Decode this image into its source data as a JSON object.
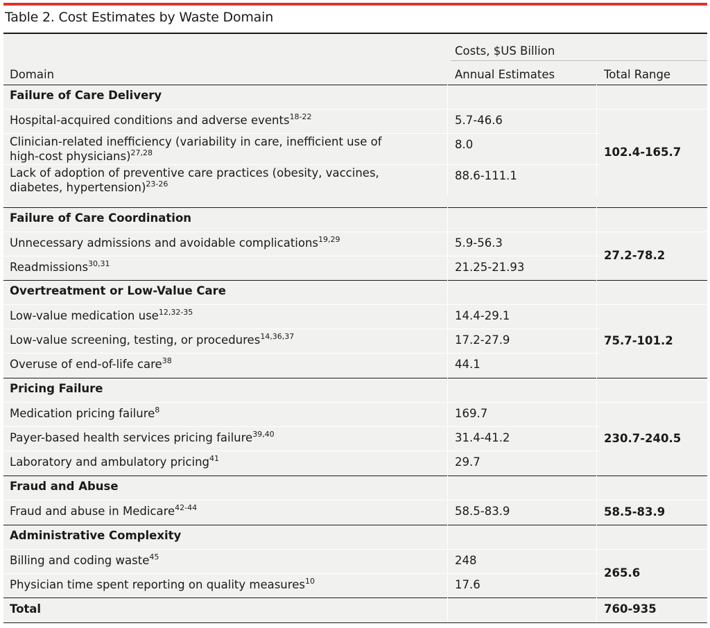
{
  "title": "Table 2. Cost Estimates by Waste Domain",
  "header": {
    "costs": "Costs, $US Billion",
    "domain": "Domain",
    "annual": "Annual Estimates",
    "total_range": "Total Range"
  },
  "sections": [
    {
      "name": "Failure of Care Delivery",
      "total": "102.4-165.7",
      "rows": [
        {
          "label": "Hospital-acquired conditions and adverse events",
          "ref": "18-22",
          "value": "5.7-46.6"
        },
        {
          "label": "Clinician-related inefficiency (variability in care, inefficient use of high-cost physicians)",
          "ref": "27,28",
          "value": "8.0"
        },
        {
          "label": "Lack of adoption of preventive care practices (obesity, vaccines, diabetes, hypertension)",
          "ref": "23-26",
          "value": "88.6-111.1"
        }
      ]
    },
    {
      "name": "Failure of Care Coordination",
      "total": "27.2-78.2",
      "rows": [
        {
          "label": "Unnecessary admissions and avoidable complications",
          "ref": "19,29",
          "value": "5.9-56.3"
        },
        {
          "label": "Readmissions",
          "ref": "30,31",
          "value": "21.25-21.93"
        }
      ]
    },
    {
      "name": "Overtreatment or Low-Value Care",
      "total": "75.7-101.2",
      "rows": [
        {
          "label": "Low-value medication use",
          "ref": "12,32-35",
          "value": "14.4-29.1"
        },
        {
          "label": "Low-value screening, testing, or procedures",
          "ref": "14,36,37",
          "value": "17.2-27.9"
        },
        {
          "label": "Overuse of end-of-life care",
          "ref": "38",
          "value": "44.1"
        }
      ]
    },
    {
      "name": "Pricing Failure",
      "total": "230.7-240.5",
      "rows": [
        {
          "label": "Medication pricing failure",
          "ref": "8",
          "value": "169.7"
        },
        {
          "label": "Payer-based health services pricing failure",
          "ref": "39,40",
          "value": "31.4-41.2"
        },
        {
          "label": "Laboratory and ambulatory pricing",
          "ref": "41",
          "value": "29.7"
        }
      ]
    },
    {
      "name": "Fraud and Abuse",
      "total": "58.5-83.9",
      "rows": [
        {
          "label": "Fraud and abuse in Medicare",
          "ref": "42-44",
          "value": "58.5-83.9"
        }
      ]
    },
    {
      "name": "Administrative Complexity",
      "total": "265.6",
      "rows": [
        {
          "label": "Billing and coding waste",
          "ref": "45",
          "value": "248"
        },
        {
          "label": "Physician time spent reporting on quality measures",
          "ref": "10",
          "value": "17.6"
        }
      ]
    }
  ],
  "total_row": {
    "label": "Total",
    "value": "760-935"
  }
}
